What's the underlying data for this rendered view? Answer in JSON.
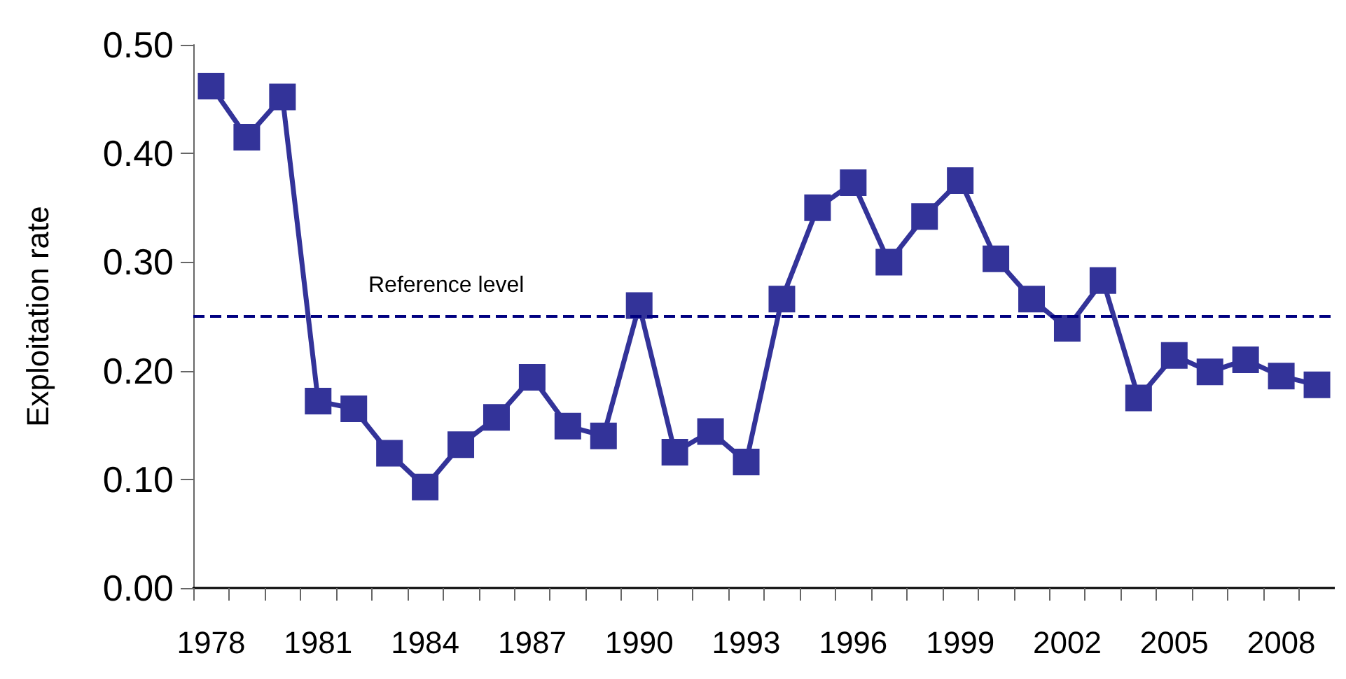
{
  "chart_data": {
    "type": "line",
    "ylabel": "Exploitation rate",
    "categories": [
      "1978",
      null,
      null,
      "1981",
      null,
      null,
      "1984",
      null,
      null,
      "1987",
      null,
      null,
      "1990",
      null,
      null,
      "1993",
      null,
      null,
      "1996",
      null,
      null,
      "1999",
      null,
      null,
      "2002",
      null,
      null,
      "2005",
      null,
      null,
      "2008",
      null
    ],
    "series": [
      {
        "color": "#333399",
        "values": [
          0.462,
          0.415,
          0.452,
          0.172,
          0.165,
          0.124,
          0.093,
          0.132,
          0.157,
          0.194,
          0.149,
          0.14,
          0.26,
          0.125,
          0.144,
          0.116,
          0.266,
          0.35,
          0.373,
          0.3,
          0.342,
          0.375,
          0.303,
          0.266,
          0.239,
          0.283,
          0.175,
          0.214,
          0.199,
          0.21,
          0.195,
          0.187
        ]
      }
    ],
    "ylim": [
      0,
      0.5
    ],
    "yticks": [
      {
        "value": 0,
        "label": "0.00"
      },
      {
        "value": 0.1,
        "label": "0.10"
      },
      {
        "value": 0.2,
        "label": "0.20"
      },
      {
        "value": 0.3,
        "label": "0.30"
      },
      {
        "value": 0.4,
        "label": "0.40"
      },
      {
        "value": 0.5,
        "label": "0.50"
      }
    ],
    "ref_lines": [
      {
        "axis": "y",
        "value": 0.25,
        "label": "Reference level",
        "color": "#000080",
        "line_style": "dashed"
      }
    ],
    "grid": false,
    "marker": "square",
    "line_style": "solid"
  }
}
